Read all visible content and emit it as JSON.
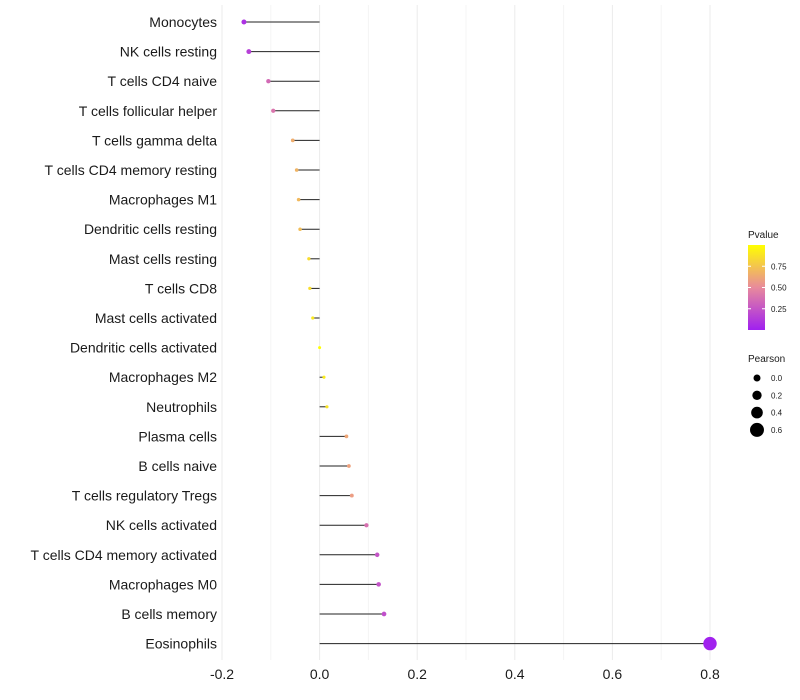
{
  "chart_data": {
    "type": "lollipop",
    "title": "",
    "xlabel": "",
    "ylabel": "",
    "xlim": [
      -0.2,
      0.8
    ],
    "xticks": [
      -0.2,
      0.0,
      0.2,
      0.4,
      0.6,
      0.8
    ],
    "xtick_labels": [
      "-0.2",
      "0.0",
      "0.2",
      "0.4",
      "0.6",
      "0.8"
    ],
    "categories": [
      "Monocytes",
      "NK cells resting",
      "T cells CD4 naive",
      "T cells follicular helper",
      "T cells gamma delta",
      "T cells CD4 memory resting",
      "Macrophages M1",
      "Dendritic cells resting",
      "Mast cells resting",
      "T cells CD8",
      "Mast cells activated",
      "Dendritic cells activated",
      "Macrophages M2",
      "Neutrophils",
      "Plasma cells",
      "B cells naive",
      "T cells regulatory  Tregs ",
      "NK cells activated",
      "T cells CD4 memory activated",
      "Macrophages M0",
      "B cells memory",
      "Eosinophils"
    ],
    "pearson": [
      -0.155,
      -0.145,
      -0.105,
      -0.095,
      -0.055,
      -0.047,
      -0.043,
      -0.04,
      -0.022,
      -0.02,
      -0.014,
      0.0,
      0.009,
      0.015,
      0.055,
      0.06,
      0.066,
      0.096,
      0.118,
      0.121,
      0.132,
      0.8
    ],
    "pvalue": [
      0.08,
      0.15,
      0.35,
      0.4,
      0.65,
      0.68,
      0.7,
      0.72,
      0.85,
      0.86,
      0.9,
      1.0,
      0.92,
      0.88,
      0.62,
      0.6,
      0.58,
      0.38,
      0.25,
      0.24,
      0.22,
      0.01
    ],
    "legend": {
      "color_title": "Pvalue",
      "color_ticks": [
        0.25,
        0.5,
        0.75
      ],
      "color_tick_labels": [
        "0.25",
        "0.50",
        "0.75"
      ],
      "color_low": "#a020f0",
      "color_mid": "#e88a9c",
      "color_high": "#ffff00",
      "size_title": "Pearson",
      "size_ticks": [
        0.0,
        0.2,
        0.4,
        0.6
      ],
      "size_tick_labels": [
        "0.0",
        "0.2",
        "0.4",
        "0.6"
      ],
      "placement": "right"
    },
    "grid": true
  }
}
